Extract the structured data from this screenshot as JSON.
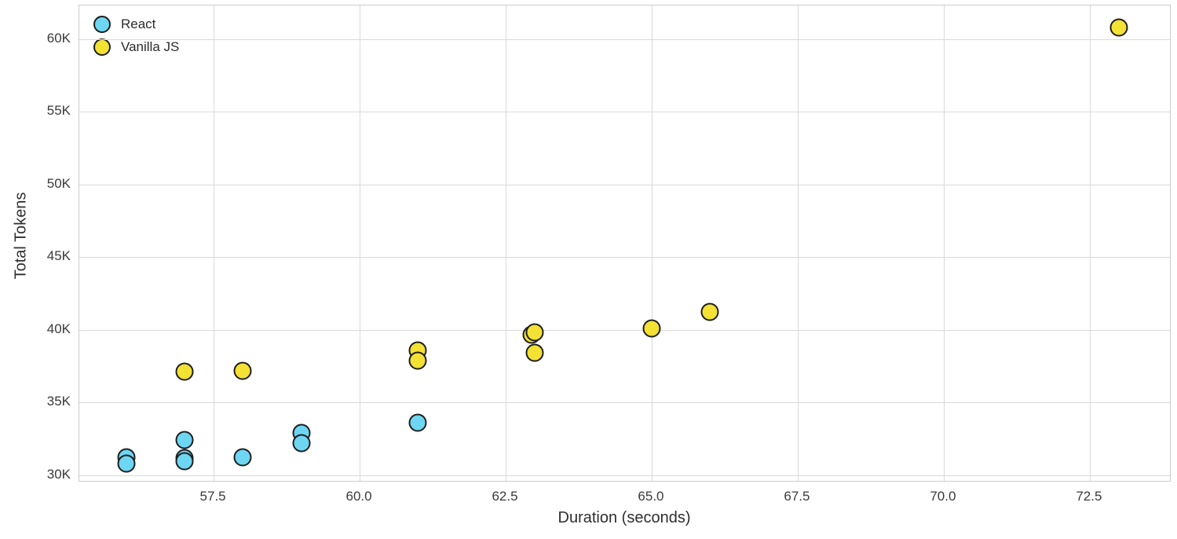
{
  "chart_data": {
    "type": "scatter",
    "title": "",
    "xlabel": "Duration (seconds)",
    "ylabel": "Total Tokens",
    "xlim": [
      55.2,
      73.9
    ],
    "ylim": [
      29500,
      62300
    ],
    "grid": true,
    "legend_position": "upper-left",
    "x_ticks": [
      {
        "value": 57.5,
        "label": "57.5"
      },
      {
        "value": 60.0,
        "label": "60.0"
      },
      {
        "value": 62.5,
        "label": "62.5"
      },
      {
        "value": 65.0,
        "label": "65.0"
      },
      {
        "value": 67.5,
        "label": "67.5"
      },
      {
        "value": 70.0,
        "label": "70.0"
      },
      {
        "value": 72.5,
        "label": "72.5"
      }
    ],
    "y_ticks": [
      {
        "value": 30000,
        "label": "30K"
      },
      {
        "value": 35000,
        "label": "35K"
      },
      {
        "value": 40000,
        "label": "40K"
      },
      {
        "value": 45000,
        "label": "45K"
      },
      {
        "value": 50000,
        "label": "50K"
      },
      {
        "value": 55000,
        "label": "55K"
      },
      {
        "value": 60000,
        "label": "60K"
      }
    ],
    "marker": {
      "diameter": 23,
      "edge_color": "#1e1e1e",
      "edge_width": 2.5
    },
    "series": [
      {
        "name": "React",
        "color": "#6dd6f2",
        "points": [
          [
            56.0,
            31250
          ],
          [
            56.0,
            30800
          ],
          [
            57.0,
            32400
          ],
          [
            57.0,
            31200
          ],
          [
            57.0,
            30950
          ],
          [
            58.0,
            31250
          ],
          [
            59.0,
            32900
          ],
          [
            59.0,
            32200
          ],
          [
            61.0,
            33600
          ]
        ]
      },
      {
        "name": "Vanilla JS",
        "color": "#f3e134",
        "points": [
          [
            57.0,
            37100
          ],
          [
            58.0,
            37200
          ],
          [
            61.0,
            38600
          ],
          [
            61.0,
            37900
          ],
          [
            62.95,
            39650
          ],
          [
            63.0,
            39800
          ],
          [
            63.0,
            38400
          ],
          [
            65.0,
            40100
          ],
          [
            66.0,
            41200
          ],
          [
            73.0,
            60800
          ]
        ]
      }
    ],
    "colors": {
      "grid": "#d9d9d9",
      "spine": "#cccccc",
      "tick_text": "#3a3a3a",
      "label_text": "#2e2e2e",
      "background": "#ffffff"
    }
  }
}
